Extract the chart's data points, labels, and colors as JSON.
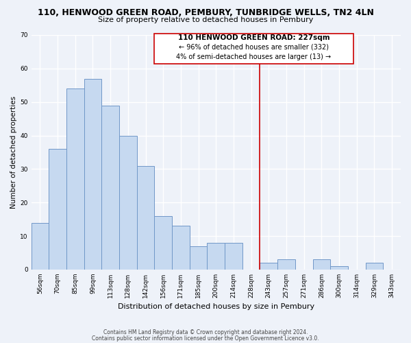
{
  "title": "110, HENWOOD GREEN ROAD, PEMBURY, TUNBRIDGE WELLS, TN2 4LN",
  "subtitle": "Size of property relative to detached houses in Pembury",
  "xlabel": "Distribution of detached houses by size in Pembury",
  "ylabel": "Number of detached properties",
  "bar_labels": [
    "56sqm",
    "70sqm",
    "85sqm",
    "99sqm",
    "113sqm",
    "128sqm",
    "142sqm",
    "156sqm",
    "171sqm",
    "185sqm",
    "200sqm",
    "214sqm",
    "228sqm",
    "243sqm",
    "257sqm",
    "271sqm",
    "286sqm",
    "300sqm",
    "314sqm",
    "329sqm",
    "343sqm"
  ],
  "bar_heights": [
    14,
    36,
    54,
    57,
    49,
    40,
    31,
    16,
    13,
    7,
    8,
    8,
    0,
    2,
    3,
    0,
    3,
    1,
    0,
    2,
    0
  ],
  "bar_color": "#c6d9f0",
  "bar_edge_color": "#7097c8",
  "vline_color": "#cc0000",
  "ylim": [
    0,
    70
  ],
  "yticks": [
    0,
    10,
    20,
    30,
    40,
    50,
    60,
    70
  ],
  "annotation_title": "110 HENWOOD GREEN ROAD: 227sqm",
  "annotation_line1": "← 96% of detached houses are smaller (332)",
  "annotation_line2": "4% of semi-detached houses are larger (13) →",
  "footer1": "Contains HM Land Registry data © Crown copyright and database right 2024.",
  "footer2": "Contains public sector information licensed under the Open Government Licence v3.0.",
  "background_color": "#eef2f9",
  "ann_box_edge_color": "#cc0000",
  "grid_color": "#ffffff",
  "title_fontsize": 9,
  "subtitle_fontsize": 8,
  "ylabel_fontsize": 7.5,
  "xlabel_fontsize": 8,
  "tick_fontsize": 6.5,
  "footer_fontsize": 5.5
}
